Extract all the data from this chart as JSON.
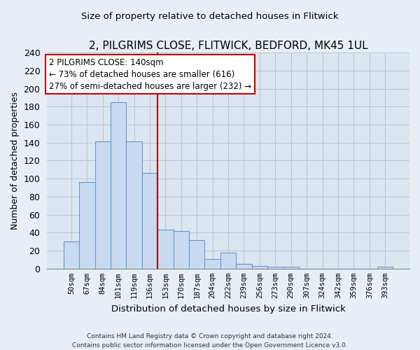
{
  "title": "2, PILGRIMS CLOSE, FLITWICK, BEDFORD, MK45 1UL",
  "subtitle": "Size of property relative to detached houses in Flitwick",
  "xlabel": "Distribution of detached houses by size in Flitwick",
  "ylabel": "Number of detached properties",
  "bar_labels": [
    "50sqm",
    "67sqm",
    "84sqm",
    "101sqm",
    "119sqm",
    "136sqm",
    "153sqm",
    "170sqm",
    "187sqm",
    "204sqm",
    "222sqm",
    "239sqm",
    "256sqm",
    "273sqm",
    "290sqm",
    "307sqm",
    "324sqm",
    "342sqm",
    "359sqm",
    "376sqm",
    "393sqm"
  ],
  "bar_values": [
    30,
    96,
    141,
    185,
    141,
    106,
    43,
    42,
    32,
    11,
    18,
    5,
    3,
    2,
    2,
    0,
    0,
    0,
    0,
    0,
    2
  ],
  "bar_color": "#c8daf0",
  "bar_edge_color": "#6699cc",
  "reference_line_color": "#aa0000",
  "annotation_title": "2 PILGRIMS CLOSE: 140sqm",
  "annotation_line1": "← 73% of detached houses are smaller (616)",
  "annotation_line2": "27% of semi-detached houses are larger (232) →",
  "annotation_box_color": "#ffffff",
  "annotation_box_edge": "#cc0000",
  "ylim": [
    0,
    240
  ],
  "yticks": [
    0,
    20,
    40,
    60,
    80,
    100,
    120,
    140,
    160,
    180,
    200,
    220,
    240
  ],
  "footer_line1": "Contains HM Land Registry data © Crown copyright and database right 2024.",
  "footer_line2": "Contains public sector information licensed under the Open Government Licence v3.0.",
  "bg_color": "#e8eef5",
  "plot_bg_color": "#dce6f0",
  "grid_color": "#b8c8d8"
}
